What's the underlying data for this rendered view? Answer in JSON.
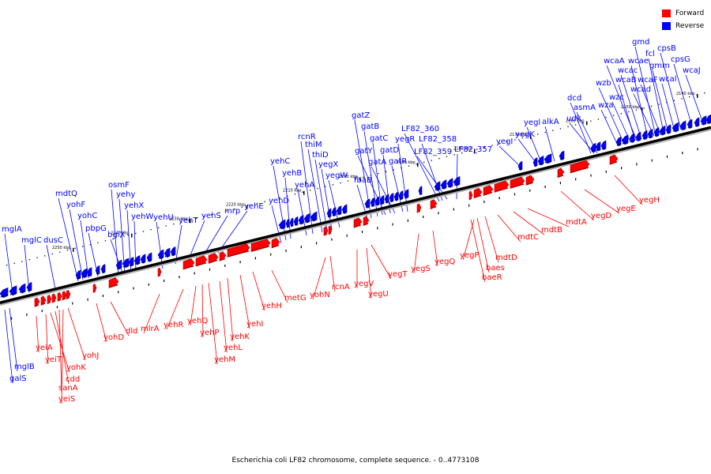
{
  "caption": "Escherichia coli LF82 chromosome, complete sequence. - 0..4773108",
  "legend": [
    {
      "label": "Forward",
      "color": "#ff0000"
    },
    {
      "label": "Reverse",
      "color": "#0000ff"
    }
  ],
  "colors": {
    "forward": "#ff0000",
    "reverse": "#0000ff",
    "forward_dark": "#b00000",
    "reverse_dark": "#00008c",
    "leader": "#9a9a9a"
  },
  "ticks": [
    "2140 kbp",
    "2150 kbp",
    "2160 kbp",
    "2170 kbp",
    "2180 kbp",
    "2190 kbp",
    "2200 kbp",
    "2210 kbp",
    "2220 kbp",
    "2230 kbp",
    "2240 kbp",
    "2250 kbp"
  ],
  "reverse_genes": [
    "mglA",
    "mglC",
    "dusC",
    "mdtQ",
    "yohF",
    "yohC",
    "pbpG",
    "osmF",
    "yehy",
    "yehX",
    "yehW",
    "bglX",
    "yehU",
    "yehT",
    "yehS",
    "mrp",
    "yehE",
    "yehD",
    "yehC",
    "yehB",
    "yehA",
    "rcnR",
    "thiM",
    "thiD",
    "yegX",
    "yegW",
    "gatZ",
    "gatB",
    "gatC",
    "gatY",
    "gatD",
    "gatA",
    "gatR",
    "fbaB",
    "yegR",
    "LF82_360",
    "LF82_358",
    "LF82_359",
    "LF82_357",
    "yegI",
    "yegK",
    "yegl",
    "alkA",
    "dcd",
    "udk",
    "asmA",
    "wza",
    "wzb",
    "wzc",
    "wcaB",
    "wcac",
    "wcaA",
    "wcae",
    "wcad",
    "wcaF",
    "wcal",
    "gmd",
    "fcl",
    "gmm",
    "cpsB",
    "cpsG",
    "wcaJ",
    "mglB",
    "galS"
  ],
  "forward_genes": [
    "yeiA",
    "yeiT",
    "yohK",
    "cdd",
    "sanA",
    "yeiS",
    "yohJ",
    "yohD",
    "dld",
    "mlrA",
    "yehR",
    "yehQ",
    "yehP",
    "yehM",
    "yehL",
    "yehK",
    "yehI",
    "yehH",
    "metG",
    "yohN",
    "rcnA",
    "yegV",
    "yegU",
    "yegT",
    "yegS",
    "yegQ",
    "yegP",
    "baes",
    "baeR",
    "mdtD",
    "mdtC",
    "mdtB",
    "mdtA",
    "yegD",
    "yegE",
    "yegH"
  ]
}
